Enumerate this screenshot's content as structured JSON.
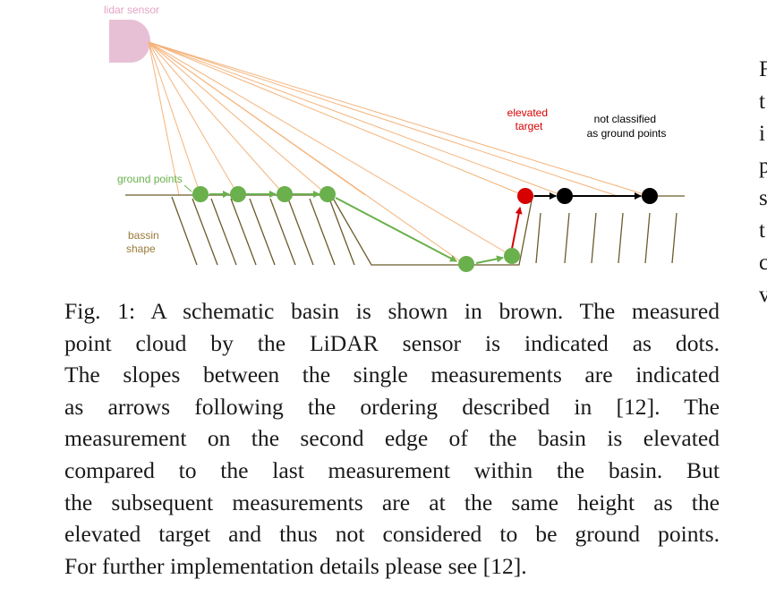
{
  "figure": {
    "labels": {
      "lidar_sensor": "lidar sensor",
      "elevated_target": [
        "elevated",
        "target"
      ],
      "not_classified": [
        "not classified",
        "as ground points"
      ],
      "ground_points": "ground points",
      "basin_shape": [
        "bassin",
        "shape"
      ]
    },
    "colors": {
      "sensor": "#e8c0d6",
      "sensor_label": "#e5a3c4",
      "rays": "#f4b37a",
      "basin": "#6b5a2a",
      "ground": "#6ab04c",
      "ground_label": "#6ab04c",
      "basin_label": "#9a7a3a",
      "elevated": "#d60000",
      "not_ground": "#000000"
    }
  },
  "caption": {
    "lines": [
      "Fig. 1: A schematic basin is shown in brown. The measured",
      "point cloud by the LiDAR sensor is indicated as dots.",
      "The slopes between the single measurements are indicated",
      "as arrows following the ordering described in [12]. The",
      "measurement on the second edge of the basin is elevated",
      "compared to the last measurement within the basin. But",
      "the subsequent measurements are at the same height as the",
      "elevated target and thus not considered to be ground points.",
      "For further implementation details please see [12]."
    ]
  },
  "right_column": {
    "letters": [
      "F",
      "t",
      "i",
      "p",
      "s",
      "t",
      "c",
      "v"
    ]
  }
}
